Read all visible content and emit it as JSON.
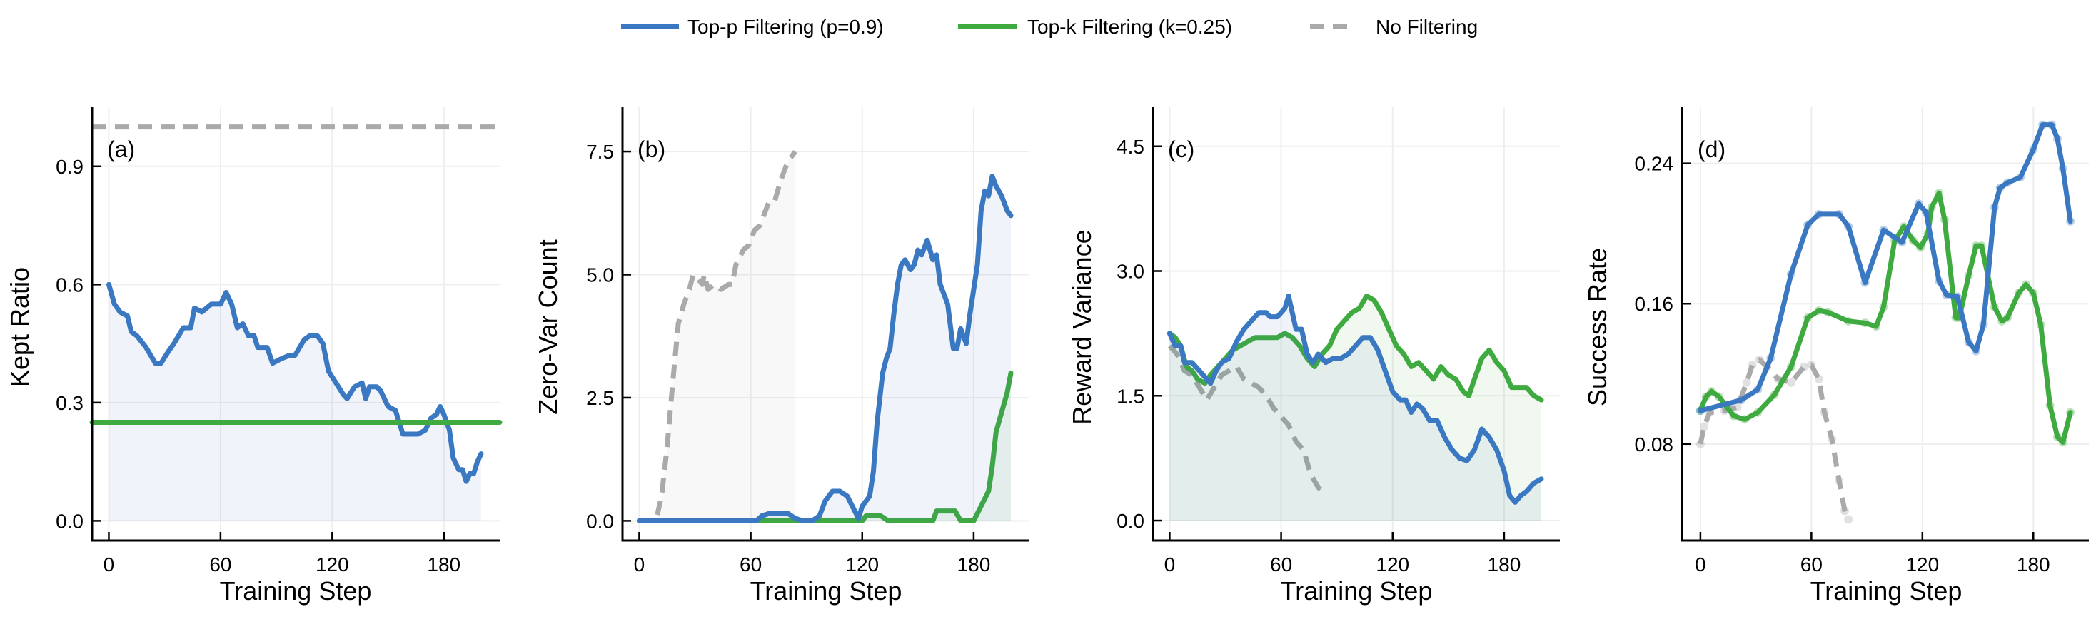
{
  "legend": {
    "position": "top-center",
    "items": [
      {
        "label": "Top-p Filtering (p=0.9)",
        "color": "#3a78c2",
        "style": "solid"
      },
      {
        "label": "Top-k Filtering (k=0.25)",
        "color": "#3faa3f",
        "style": "solid"
      },
      {
        "label": "No Filtering",
        "color": "#aaaaaa",
        "style": "dashed"
      }
    ]
  },
  "chart_data": [
    {
      "type": "line",
      "panel": "(a)",
      "xlabel": "Training Step",
      "ylabel": "Kept Ratio",
      "xlim": [
        -9,
        210
      ],
      "ylim": [
        -0.05,
        1.05
      ],
      "grid": true,
      "xticks": [
        0,
        60,
        120,
        180
      ],
      "xtick_labels": [
        "0",
        "60",
        "120",
        "180"
      ],
      "yticks": [
        0,
        0.3,
        0.6,
        0.9
      ],
      "ytick_labels": [
        "0.0",
        "0.3",
        "0.6",
        "0.9"
      ],
      "series": [
        {
          "legend_index": 0,
          "fill": true,
          "x": [
            0,
            3,
            6,
            10,
            12,
            15,
            20,
            25,
            28,
            32,
            35,
            40,
            44,
            46,
            50,
            55,
            60,
            63,
            66,
            69,
            72,
            75,
            78,
            80,
            85,
            88,
            92,
            97,
            100,
            105,
            108,
            112,
            115,
            118,
            122,
            126,
            128,
            132,
            136,
            138,
            140,
            144,
            146,
            150,
            154,
            156,
            158,
            162,
            166,
            170,
            173,
            176,
            178,
            180,
            183,
            185,
            188,
            190,
            192,
            194,
            196,
            198,
            200
          ],
          "y": [
            0.6,
            0.55,
            0.53,
            0.52,
            0.48,
            0.47,
            0.44,
            0.4,
            0.4,
            0.43,
            0.45,
            0.49,
            0.49,
            0.54,
            0.53,
            0.55,
            0.55,
            0.58,
            0.55,
            0.49,
            0.5,
            0.47,
            0.47,
            0.44,
            0.44,
            0.4,
            0.41,
            0.42,
            0.42,
            0.46,
            0.47,
            0.47,
            0.45,
            0.38,
            0.35,
            0.32,
            0.31,
            0.34,
            0.35,
            0.31,
            0.34,
            0.34,
            0.33,
            0.29,
            0.28,
            0.25,
            0.22,
            0.22,
            0.22,
            0.23,
            0.26,
            0.27,
            0.29,
            0.27,
            0.23,
            0.16,
            0.13,
            0.13,
            0.1,
            0.12,
            0.12,
            0.15,
            0.17
          ]
        },
        {
          "legend_index": 1,
          "x": [
            -9,
            210
          ],
          "y": [
            0.25,
            0.25
          ]
        },
        {
          "legend_index": 2,
          "x": [
            -9,
            210
          ],
          "y": [
            1.0,
            1.0
          ]
        }
      ]
    },
    {
      "type": "line",
      "panel": "(b)",
      "xlabel": "Training Step",
      "ylabel": "Zero-Var Count",
      "xlim": [
        -9,
        210
      ],
      "ylim": [
        -0.4,
        8.4
      ],
      "grid": true,
      "xticks": [
        0,
        60,
        120,
        180
      ],
      "xtick_labels": [
        "0",
        "60",
        "120",
        "180"
      ],
      "yticks": [
        0,
        2.5,
        5,
        7.5
      ],
      "ytick_labels": [
        "0.0",
        "2.5",
        "5.0",
        "7.5"
      ],
      "series": [
        {
          "legend_index": 2,
          "fill": true,
          "x": [
            0,
            9,
            12,
            15,
            18,
            21,
            24,
            27,
            29,
            32,
            34,
            35,
            37,
            40,
            44,
            48,
            50,
            52,
            56,
            59,
            62,
            65,
            68,
            70,
            73,
            76,
            79,
            81,
            84
          ],
          "y": [
            0,
            0,
            0.5,
            1.5,
            2.8,
            4.0,
            4.4,
            4.7,
            5.0,
            4.9,
            4.8,
            5.0,
            4.7,
            4.8,
            4.7,
            4.8,
            4.8,
            5.2,
            5.5,
            5.6,
            5.9,
            6.0,
            6.3,
            6.5,
            6.5,
            6.9,
            7.2,
            7.35,
            7.5
          ]
        },
        {
          "legend_index": 1,
          "fill": true,
          "x": [
            0,
            120,
            122,
            130,
            134,
            158,
            160,
            170,
            173,
            180,
            184,
            188,
            190,
            192,
            195,
            198,
            200
          ],
          "y": [
            0,
            0,
            0.1,
            0.1,
            0,
            0,
            0.2,
            0.2,
            0,
            0,
            0.3,
            0.6,
            1.1,
            1.8,
            2.2,
            2.6,
            3.0
          ]
        },
        {
          "legend_index": 0,
          "fill": true,
          "x": [
            0,
            63,
            66,
            70,
            80,
            84,
            88,
            93,
            97,
            100,
            104,
            108,
            112,
            116,
            118,
            120,
            122,
            124,
            126,
            128,
            131,
            133,
            135,
            137,
            139,
            141,
            143,
            146,
            148,
            150,
            152,
            155,
            158,
            160,
            162,
            166,
            169,
            171,
            173,
            176,
            178,
            182,
            184,
            186,
            188,
            190,
            192,
            195,
            198,
            200
          ],
          "y": [
            0,
            0,
            0.1,
            0.15,
            0.15,
            0.05,
            0,
            0,
            0.1,
            0.4,
            0.6,
            0.6,
            0.5,
            0.2,
            0.05,
            0.3,
            0.4,
            0.5,
            1.0,
            2.0,
            3.0,
            3.3,
            3.5,
            4.2,
            4.8,
            5.2,
            5.3,
            5.1,
            5.2,
            5.5,
            5.4,
            5.7,
            5.3,
            5.4,
            4.8,
            4.4,
            3.5,
            3.5,
            3.9,
            3.6,
            4.2,
            5.2,
            6.3,
            6.7,
            6.6,
            7.0,
            6.8,
            6.6,
            6.3,
            6.2
          ]
        }
      ]
    },
    {
      "type": "line",
      "panel": "(c)",
      "xlabel": "Training Step",
      "ylabel": "Reward Variance",
      "xlim": [
        -9,
        210
      ],
      "ylim": [
        -0.24,
        4.97
      ],
      "grid": true,
      "xticks": [
        0,
        60,
        120,
        180
      ],
      "xtick_labels": [
        "0",
        "60",
        "120",
        "180"
      ],
      "yticks": [
        0,
        1.5,
        3,
        4.5
      ],
      "ytick_labels": [
        "0.0",
        "1.5",
        "3.0",
        "4.5"
      ],
      "series": [
        {
          "legend_index": 2,
          "x": [
            0,
            4,
            8,
            12,
            16,
            20,
            24,
            28,
            32,
            36,
            40,
            44,
            48,
            52,
            56,
            60,
            64,
            68,
            72,
            76,
            80,
            84
          ],
          "y": [
            2.1,
            2.0,
            1.8,
            1.75,
            1.6,
            1.45,
            1.6,
            1.75,
            1.8,
            1.85,
            1.7,
            1.65,
            1.6,
            1.5,
            1.35,
            1.25,
            1.15,
            0.95,
            0.85,
            0.55,
            0.4,
            0.3
          ]
        },
        {
          "legend_index": 1,
          "fill": true,
          "x": [
            0,
            3,
            6,
            9,
            12,
            15,
            19,
            22,
            26,
            30,
            34,
            38,
            42,
            46,
            50,
            54,
            58,
            62,
            66,
            70,
            74,
            78,
            82,
            86,
            90,
            94,
            98,
            102,
            106,
            110,
            114,
            118,
            122,
            126,
            130,
            134,
            138,
            142,
            146,
            150,
            154,
            158,
            161,
            164,
            168,
            172,
            176,
            180,
            184,
            188,
            192,
            196,
            200
          ],
          "y": [
            2.25,
            2.2,
            2.1,
            1.85,
            1.8,
            1.7,
            1.65,
            1.75,
            1.85,
            1.95,
            2.05,
            2.1,
            2.15,
            2.2,
            2.2,
            2.2,
            2.2,
            2.25,
            2.2,
            2.1,
            1.95,
            1.85,
            2.0,
            2.1,
            2.3,
            2.4,
            2.5,
            2.55,
            2.7,
            2.65,
            2.5,
            2.3,
            2.1,
            2.0,
            1.85,
            1.9,
            1.8,
            1.7,
            1.85,
            1.75,
            1.7,
            1.55,
            1.5,
            1.7,
            1.95,
            2.05,
            1.9,
            1.8,
            1.6,
            1.6,
            1.6,
            1.5,
            1.45
          ]
        },
        {
          "legend_index": 0,
          "fill": true,
          "x": [
            0,
            3,
            6,
            8,
            12,
            16,
            20,
            22,
            25,
            28,
            32,
            36,
            40,
            44,
            48,
            52,
            54,
            58,
            62,
            64,
            66,
            68,
            71,
            74,
            77,
            80,
            84,
            88,
            92,
            96,
            100,
            104,
            108,
            112,
            116,
            120,
            124,
            127,
            130,
            133,
            136,
            140,
            144,
            148,
            152,
            156,
            160,
            164,
            168,
            172,
            176,
            180,
            183,
            186,
            189,
            192,
            196,
            200
          ],
          "y": [
            2.25,
            2.1,
            2.1,
            1.9,
            1.9,
            1.8,
            1.7,
            1.65,
            1.8,
            1.9,
            1.95,
            2.15,
            2.3,
            2.4,
            2.5,
            2.5,
            2.45,
            2.45,
            2.55,
            2.7,
            2.5,
            2.3,
            2.3,
            2.0,
            1.9,
            2.0,
            1.9,
            1.95,
            1.95,
            2.0,
            2.1,
            2.2,
            2.2,
            2.05,
            1.8,
            1.55,
            1.45,
            1.45,
            1.3,
            1.4,
            1.35,
            1.2,
            1.2,
            1.0,
            0.85,
            0.75,
            0.72,
            0.85,
            1.1,
            1.0,
            0.85,
            0.6,
            0.3,
            0.22,
            0.3,
            0.35,
            0.45,
            0.5
          ]
        }
      ]
    },
    {
      "type": "line",
      "panel": "(d)",
      "xlabel": "Training Step",
      "ylabel": "Success Rate",
      "xlim": [
        -10,
        210
      ],
      "ylim": [
        0.025,
        0.272
      ],
      "grid": true,
      "markers": true,
      "xticks": [
        0,
        60,
        120,
        180
      ],
      "xtick_labels": [
        "0",
        "60",
        "120",
        "180"
      ],
      "yticks": [
        0.08,
        0.16,
        0.24
      ],
      "ytick_labels": [
        "0.08",
        "0.16",
        "0.24"
      ],
      "series": [
        {
          "legend_index": 2,
          "x": [
            0,
            2,
            5,
            13,
            20,
            25,
            28,
            32,
            36,
            42,
            49,
            56,
            60,
            64,
            67,
            71,
            75,
            78,
            80
          ],
          "y": [
            0.08,
            0.09,
            0.098,
            0.099,
            0.101,
            0.115,
            0.125,
            0.128,
            0.124,
            0.117,
            0.115,
            0.124,
            0.125,
            0.117,
            0.098,
            0.083,
            0.059,
            0.042,
            0.037
          ]
        },
        {
          "legend_index": 1,
          "x": [
            0,
            3,
            6,
            10,
            18,
            24,
            31,
            40,
            49,
            58,
            64,
            69,
            80,
            89,
            95,
            99,
            105,
            110,
            115,
            119,
            123,
            125,
            129,
            132,
            138,
            140,
            145,
            149,
            152,
            159,
            163,
            166,
            172,
            176,
            180,
            184,
            189,
            193,
            196,
            200
          ],
          "y": [
            0.099,
            0.107,
            0.11,
            0.107,
            0.096,
            0.094,
            0.098,
            0.108,
            0.124,
            0.152,
            0.156,
            0.155,
            0.15,
            0.149,
            0.147,
            0.158,
            0.196,
            0.204,
            0.196,
            0.192,
            0.2,
            0.215,
            0.223,
            0.208,
            0.152,
            0.152,
            0.176,
            0.193,
            0.193,
            0.158,
            0.15,
            0.152,
            0.166,
            0.171,
            0.166,
            0.148,
            0.102,
            0.084,
            0.081,
            0.098
          ]
        },
        {
          "legend_index": 0,
          "x": [
            0,
            22,
            31,
            38,
            49,
            58,
            64,
            75,
            80,
            89,
            99,
            109,
            118,
            122,
            129,
            133,
            139,
            145,
            149,
            153,
            159,
            162,
            166,
            173,
            180,
            185,
            190,
            193,
            196,
            200
          ],
          "y": [
            0.099,
            0.105,
            0.111,
            0.129,
            0.177,
            0.205,
            0.211,
            0.211,
            0.204,
            0.172,
            0.202,
            0.195,
            0.217,
            0.212,
            0.173,
            0.165,
            0.164,
            0.138,
            0.133,
            0.148,
            0.215,
            0.226,
            0.229,
            0.232,
            0.248,
            0.262,
            0.262,
            0.254,
            0.237,
            0.207
          ]
        }
      ]
    }
  ]
}
